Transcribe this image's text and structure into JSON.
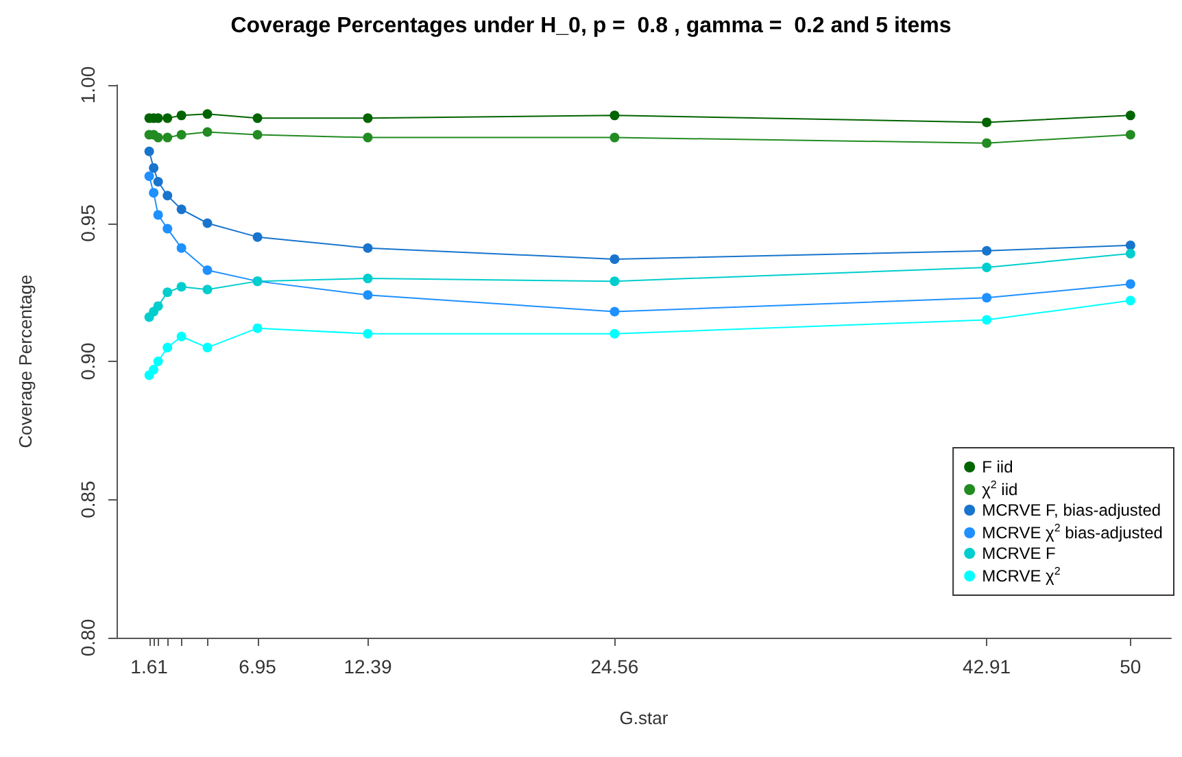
{
  "chart_data": {
    "type": "line",
    "title": "Coverage Percentages under H_0, p =  0.8 , gamma =  0.2 and 5 items",
    "xlabel": "G.star",
    "ylabel": "Coverage Percentage",
    "x": [
      1.61,
      1.83,
      2.05,
      2.51,
      3.2,
      4.48,
      6.95,
      12.39,
      24.56,
      42.91,
      50
    ],
    "series": [
      {
        "name": "F iid",
        "color": "#006400",
        "values": [
          0.988,
          0.988,
          0.988,
          0.988,
          0.989,
          0.9895,
          0.988,
          0.988,
          0.989,
          0.9865,
          0.989
        ]
      },
      {
        "name": "χ$^{2}$ iid",
        "color": "#228b22",
        "values": [
          0.982,
          0.982,
          0.981,
          0.981,
          0.982,
          0.983,
          0.982,
          0.981,
          0.981,
          0.979,
          0.982
        ]
      },
      {
        "name": "MCRVE F, bias-adjusted",
        "color": "#1874cd",
        "values": [
          0.976,
          0.97,
          0.965,
          0.96,
          0.955,
          0.95,
          0.945,
          0.941,
          0.937,
          0.94,
          0.942
        ]
      },
      {
        "name": "MCRVE χ$^{2}$ bias-adjusted",
        "color": "#1e90ff",
        "values": [
          0.967,
          0.961,
          0.953,
          0.948,
          0.941,
          0.933,
          0.929,
          0.924,
          0.918,
          0.923,
          0.928
        ]
      },
      {
        "name": "MCRVE F",
        "color": "#00cdcd",
        "values": [
          0.916,
          0.918,
          0.92,
          0.925,
          0.927,
          0.926,
          0.929,
          0.93,
          0.929,
          0.934,
          0.939
        ]
      },
      {
        "name": "MCRVE χ$^{2}$",
        "color": "#00ffff",
        "values": [
          0.895,
          0.897,
          0.9,
          0.905,
          0.909,
          0.905,
          0.912,
          0.91,
          0.91,
          0.915,
          0.922
        ]
      }
    ],
    "xlim": [
      0,
      52
    ],
    "xticks": [
      1.61,
      {
        "value": 1.83,
        "label": null
      },
      {
        "value": 2.05,
        "label": null
      },
      {
        "value": 2.51,
        "label": null
      },
      {
        "value": 3.2,
        "label": null
      },
      {
        "value": 4.48,
        "label": null
      },
      6.95,
      12.39,
      24.56,
      42.91,
      50
    ],
    "ylim": [
      0.8,
      1.0
    ],
    "yticks": [
      {
        "value": 0.8,
        "label": "0.80"
      },
      {
        "value": 0.85,
        "label": "0.85"
      },
      {
        "value": 0.9,
        "label": "0.90"
      },
      {
        "value": 0.95,
        "label": "0.95"
      },
      {
        "value": 1.0,
        "label": "1.00"
      }
    ],
    "grid": false,
    "legend": "bottom right",
    "marker": "circle"
  }
}
